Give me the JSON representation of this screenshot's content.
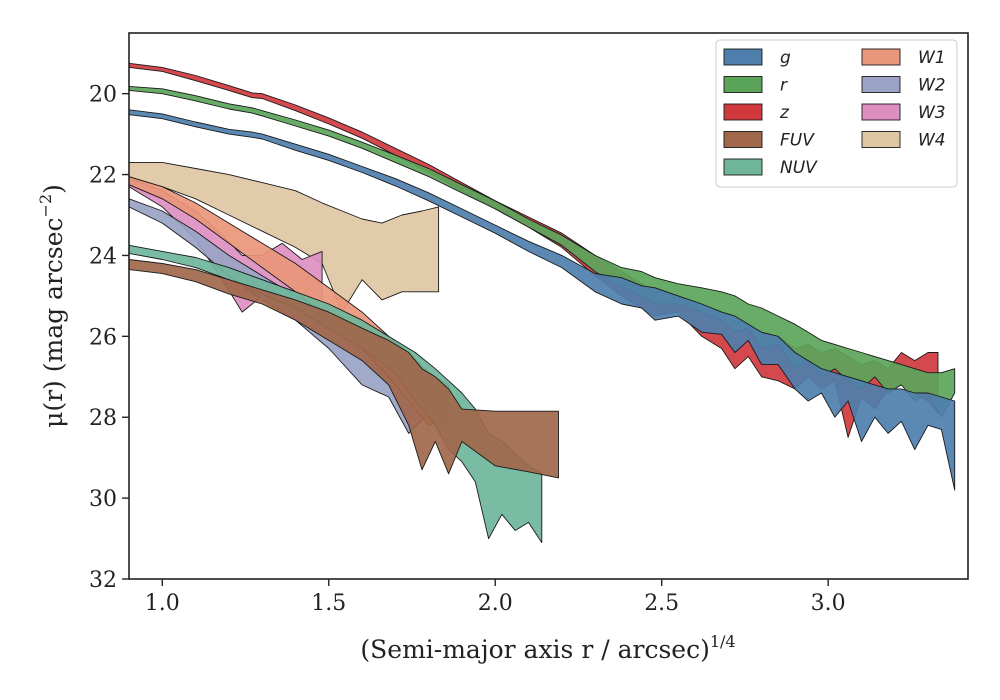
{
  "chart_data": {
    "type": "area",
    "xlabel": "(Semi-major axis r / arcsec)",
    "xlabel_exponent": "1/4",
    "ylabel": "μ(r) (mag arcsec",
    "ylabel_exponent": "−2",
    "ylabel_close": ")",
    "xlim": [
      0.9,
      3.42
    ],
    "ylim": [
      32,
      18.5
    ],
    "y_inverted": true,
    "xticks": [
      1.0,
      1.5,
      2.0,
      2.5,
      3.0
    ],
    "xtick_labels": [
      "1.0",
      "1.5",
      "2.0",
      "2.5",
      "3.0"
    ],
    "yticks": [
      20,
      22,
      24,
      26,
      28,
      30,
      32
    ],
    "ytick_labels": [
      "20",
      "22",
      "24",
      "26",
      "28",
      "30",
      "32"
    ],
    "grid": false,
    "legend_position": "top-right",
    "legend_columns": 2,
    "series": [
      {
        "name": "g",
        "color": "#4e7fac",
        "bands": [
          [
            0.9,
            20.4,
            20.52
          ],
          [
            1.0,
            20.5,
            20.62
          ],
          [
            1.1,
            20.7,
            20.82
          ],
          [
            1.2,
            20.88,
            21.0
          ],
          [
            1.27,
            20.95,
            21.08
          ],
          [
            1.3,
            21.0,
            21.12
          ],
          [
            1.4,
            21.25,
            21.4
          ],
          [
            1.5,
            21.5,
            21.65
          ],
          [
            1.6,
            21.8,
            21.95
          ],
          [
            1.7,
            22.1,
            22.28
          ],
          [
            1.8,
            22.45,
            22.65
          ],
          [
            1.9,
            22.85,
            23.05
          ],
          [
            2.0,
            23.25,
            23.45
          ],
          [
            2.1,
            23.65,
            23.9
          ],
          [
            2.2,
            24.0,
            24.3
          ],
          [
            2.3,
            24.45,
            24.9
          ],
          [
            2.38,
            24.55,
            25.2
          ],
          [
            2.44,
            24.75,
            25.3
          ],
          [
            2.48,
            24.8,
            25.6
          ],
          [
            2.55,
            25.0,
            25.5
          ],
          [
            2.62,
            25.2,
            25.9
          ],
          [
            2.68,
            25.4,
            25.95
          ],
          [
            2.72,
            25.5,
            26.4
          ],
          [
            2.76,
            25.7,
            26.1
          ],
          [
            2.8,
            25.9,
            26.7
          ],
          [
            2.85,
            26.0,
            26.7
          ],
          [
            2.9,
            26.4,
            27.3
          ],
          [
            2.94,
            26.6,
            27.6
          ],
          [
            2.98,
            26.8,
            27.4
          ],
          [
            3.02,
            26.9,
            28.0
          ],
          [
            3.06,
            27.0,
            27.6
          ],
          [
            3.1,
            27.1,
            28.6
          ],
          [
            3.14,
            27.2,
            28.0
          ],
          [
            3.18,
            27.3,
            28.4
          ],
          [
            3.22,
            27.3,
            28.1
          ],
          [
            3.26,
            27.4,
            28.8
          ],
          [
            3.3,
            27.4,
            28.2
          ],
          [
            3.34,
            27.5,
            28.3
          ],
          [
            3.38,
            27.6,
            29.8
          ]
        ]
      },
      {
        "name": "r",
        "color": "#5ba55b",
        "bands": [
          [
            0.9,
            19.82,
            19.92
          ],
          [
            1.0,
            19.88,
            20.0
          ],
          [
            1.1,
            20.05,
            20.18
          ],
          [
            1.2,
            20.25,
            20.38
          ],
          [
            1.27,
            20.35,
            20.48
          ],
          [
            1.3,
            20.42,
            20.55
          ],
          [
            1.4,
            20.65,
            20.8
          ],
          [
            1.5,
            20.9,
            21.05
          ],
          [
            1.6,
            21.2,
            21.35
          ],
          [
            1.7,
            21.52,
            21.7
          ],
          [
            1.8,
            21.85,
            22.05
          ],
          [
            1.9,
            22.25,
            22.45
          ],
          [
            2.0,
            22.65,
            22.85
          ],
          [
            2.1,
            23.1,
            23.3
          ],
          [
            2.2,
            23.5,
            23.75
          ],
          [
            2.3,
            24.0,
            24.4
          ],
          [
            2.38,
            24.3,
            24.8
          ],
          [
            2.44,
            24.4,
            25.0
          ],
          [
            2.48,
            24.55,
            25.2
          ],
          [
            2.55,
            24.7,
            25.2
          ],
          [
            2.62,
            24.8,
            25.4
          ],
          [
            2.68,
            24.9,
            25.6
          ],
          [
            2.72,
            25.0,
            25.9
          ],
          [
            2.76,
            25.2,
            25.8
          ],
          [
            2.8,
            25.3,
            26.3
          ],
          [
            2.85,
            25.5,
            26.2
          ],
          [
            2.9,
            25.7,
            26.8
          ],
          [
            2.94,
            25.9,
            26.6
          ],
          [
            2.98,
            26.1,
            27.0
          ],
          [
            3.02,
            26.2,
            26.8
          ],
          [
            3.06,
            26.3,
            27.1
          ],
          [
            3.1,
            26.4,
            27.3
          ],
          [
            3.14,
            26.5,
            27.0
          ],
          [
            3.18,
            26.6,
            27.4
          ],
          [
            3.22,
            26.7,
            27.2
          ],
          [
            3.26,
            26.8,
            27.6
          ],
          [
            3.3,
            26.9,
            27.4
          ],
          [
            3.34,
            26.9,
            28.0
          ],
          [
            3.38,
            26.8,
            27.4
          ]
        ]
      },
      {
        "name": "z",
        "color": "#d03a3f",
        "bands": [
          [
            0.9,
            19.25,
            19.35
          ],
          [
            1.0,
            19.35,
            19.45
          ],
          [
            1.1,
            19.55,
            19.68
          ],
          [
            1.2,
            19.8,
            19.92
          ],
          [
            1.27,
            19.98,
            20.1
          ],
          [
            1.3,
            20.0,
            20.12
          ],
          [
            1.4,
            20.28,
            20.42
          ],
          [
            1.5,
            20.6,
            20.75
          ],
          [
            1.6,
            20.95,
            21.1
          ],
          [
            1.7,
            21.35,
            21.52
          ],
          [
            1.8,
            21.75,
            21.95
          ],
          [
            1.9,
            22.2,
            22.4
          ],
          [
            2.0,
            22.65,
            22.85
          ],
          [
            2.1,
            23.05,
            23.3
          ],
          [
            2.2,
            23.45,
            23.8
          ],
          [
            2.3,
            24.0,
            24.5
          ],
          [
            2.38,
            24.4,
            25.0
          ],
          [
            2.44,
            24.7,
            25.3
          ],
          [
            2.48,
            24.9,
            25.5
          ],
          [
            2.55,
            25.0,
            25.4
          ],
          [
            2.62,
            25.4,
            26.0
          ],
          [
            2.68,
            25.6,
            26.3
          ],
          [
            2.72,
            25.9,
            26.8
          ],
          [
            2.76,
            25.8,
            26.5
          ],
          [
            2.8,
            26.2,
            27.0
          ],
          [
            2.85,
            26.0,
            27.1
          ],
          [
            2.9,
            26.3,
            27.3
          ],
          [
            2.94,
            26.2,
            27.0
          ],
          [
            2.98,
            26.4,
            27.3
          ],
          [
            3.02,
            26.3,
            27.1
          ],
          [
            3.06,
            26.5,
            28.5
          ],
          [
            3.1,
            26.7,
            27.5
          ],
          [
            3.14,
            26.6,
            27.8
          ],
          [
            3.18,
            26.8,
            27.3
          ],
          [
            3.22,
            26.4,
            27.2
          ],
          [
            3.26,
            26.6,
            27.4
          ],
          [
            3.3,
            26.4,
            27.6
          ],
          [
            3.33,
            26.4,
            27.9
          ]
        ]
      },
      {
        "name": "FUV",
        "color": "#a0674b",
        "bands": [
          [
            0.9,
            24.1,
            24.35
          ],
          [
            1.0,
            24.2,
            24.45
          ],
          [
            1.1,
            24.35,
            24.65
          ],
          [
            1.2,
            24.6,
            24.95
          ],
          [
            1.3,
            24.85,
            25.2
          ],
          [
            1.4,
            25.1,
            25.6
          ],
          [
            1.5,
            25.4,
            26.1
          ],
          [
            1.6,
            25.8,
            26.6
          ],
          [
            1.68,
            26.1,
            27.2
          ],
          [
            1.74,
            26.4,
            28.2
          ],
          [
            1.78,
            26.8,
            29.3
          ],
          [
            1.82,
            27.0,
            28.6
          ],
          [
            1.86,
            27.3,
            29.4
          ],
          [
            1.9,
            27.8,
            28.6
          ],
          [
            2.0,
            27.85,
            29.2
          ],
          [
            2.1,
            27.85,
            29.35
          ],
          [
            2.19,
            27.85,
            29.5
          ]
        ]
      },
      {
        "name": "NUV",
        "color": "#6fb69b",
        "bands": [
          [
            0.9,
            23.75,
            23.95
          ],
          [
            1.0,
            23.9,
            24.1
          ],
          [
            1.1,
            24.05,
            24.3
          ],
          [
            1.2,
            24.3,
            24.6
          ],
          [
            1.3,
            24.6,
            24.95
          ],
          [
            1.4,
            24.9,
            25.3
          ],
          [
            1.5,
            25.2,
            25.8
          ],
          [
            1.6,
            25.6,
            26.3
          ],
          [
            1.7,
            26.1,
            26.9
          ],
          [
            1.76,
            26.4,
            27.6
          ],
          [
            1.82,
            26.8,
            28.2
          ],
          [
            1.86,
            27.1,
            28.8
          ],
          [
            1.9,
            27.4,
            29.1
          ],
          [
            1.94,
            27.8,
            29.6
          ],
          [
            1.98,
            28.4,
            31.0
          ],
          [
            2.02,
            28.6,
            30.4
          ],
          [
            2.06,
            28.9,
            30.8
          ],
          [
            2.1,
            29.2,
            30.6
          ],
          [
            2.14,
            29.4,
            31.1
          ]
        ]
      },
      {
        "name": "W1",
        "color": "#e9967a",
        "bands": [
          [
            0.9,
            22.05,
            22.25
          ],
          [
            1.0,
            22.3,
            22.6
          ],
          [
            1.1,
            22.7,
            23.1
          ],
          [
            1.2,
            23.2,
            23.7
          ],
          [
            1.3,
            23.7,
            24.3
          ],
          [
            1.4,
            24.2,
            24.9
          ],
          [
            1.5,
            24.8,
            25.6
          ],
          [
            1.6,
            25.4,
            26.3
          ],
          [
            1.68,
            26.0,
            27.0
          ],
          [
            1.74,
            26.4,
            27.6
          ],
          [
            1.8,
            26.9,
            28.2
          ],
          [
            1.86,
            27.2,
            28.0
          ]
        ]
      },
      {
        "name": "W2",
        "color": "#9aa3c6",
        "bands": [
          [
            0.9,
            22.6,
            22.8
          ],
          [
            1.0,
            22.9,
            23.2
          ],
          [
            1.1,
            23.4,
            23.8
          ],
          [
            1.2,
            24.0,
            24.5
          ],
          [
            1.3,
            24.5,
            25.1
          ],
          [
            1.4,
            25.0,
            25.6
          ],
          [
            1.5,
            25.4,
            26.3
          ],
          [
            1.6,
            25.9,
            27.2
          ],
          [
            1.68,
            26.4,
            27.5
          ],
          [
            1.74,
            26.7,
            28.4
          ],
          [
            1.8,
            27.0,
            27.9
          ],
          [
            1.86,
            27.2,
            28.3
          ]
        ]
      },
      {
        "name": "W3",
        "color": "#dd8fc2",
        "bands": [
          [
            0.9,
            22.1,
            22.3
          ],
          [
            1.0,
            22.4,
            22.8
          ],
          [
            1.1,
            22.9,
            23.6
          ],
          [
            1.18,
            23.5,
            24.6
          ],
          [
            1.24,
            24.0,
            25.4
          ],
          [
            1.3,
            24.0,
            25.0
          ],
          [
            1.36,
            23.7,
            24.8
          ],
          [
            1.42,
            24.1,
            25.3
          ],
          [
            1.48,
            23.9,
            25.7
          ]
        ]
      },
      {
        "name": "W4",
        "color": "#e0c7a4",
        "bands": [
          [
            0.9,
            21.7,
            22.1
          ],
          [
            1.0,
            21.7,
            22.3
          ],
          [
            1.1,
            21.85,
            22.6
          ],
          [
            1.2,
            22.0,
            23.0
          ],
          [
            1.3,
            22.2,
            23.4
          ],
          [
            1.4,
            22.4,
            23.8
          ],
          [
            1.48,
            22.7,
            24.2
          ],
          [
            1.54,
            22.9,
            25.4
          ],
          [
            1.6,
            23.1,
            24.6
          ],
          [
            1.66,
            23.2,
            25.1
          ],
          [
            1.72,
            23.0,
            24.9
          ],
          [
            1.78,
            22.9,
            24.9
          ],
          [
            1.83,
            22.8,
            24.9
          ]
        ]
      }
    ]
  }
}
